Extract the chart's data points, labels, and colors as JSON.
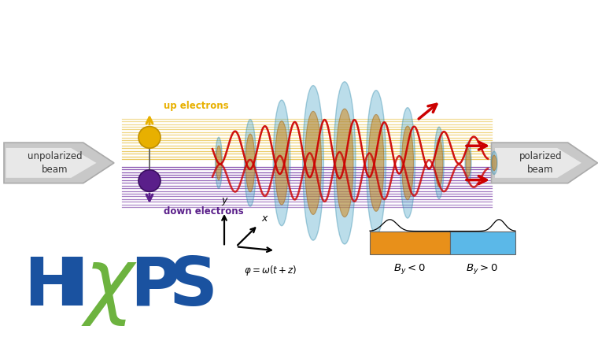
{
  "bg_color": "#ffffff",
  "fig_width": 7.6,
  "fig_height": 4.28,
  "unpolarized_text": "unpolarized\nbeam",
  "polarized_text": "polarized\nbeam",
  "up_electron_text": "up electrons",
  "down_electron_text": "down electrons",
  "hixps_H_color": "#1a52a0",
  "hixps_I_color": "#1a52a0",
  "hixps_X_color": "#6db33f",
  "hixps_P_color": "#1a52a0",
  "hixps_S_color": "#1a52a0",
  "electron_yellow": "#e8b000",
  "electron_purple": "#5a1f8a",
  "wave_color": "#cc0000",
  "beam_yellow": "#e8c040",
  "beam_purple": "#7030a0",
  "ellipse_blue": "#4da6c8",
  "ellipse_orange": "#d4820a",
  "formula_text": "$\\varphi = \\omega(t + z)$",
  "by_neg_text": "$B_y < 0$",
  "by_pos_text": "$B_y > 0$",
  "orange_color": "#e8901a",
  "sky_blue_color": "#5bb8e8",
  "arrow_gray_light": "#d8d8d8",
  "arrow_gray_dark": "#888888"
}
